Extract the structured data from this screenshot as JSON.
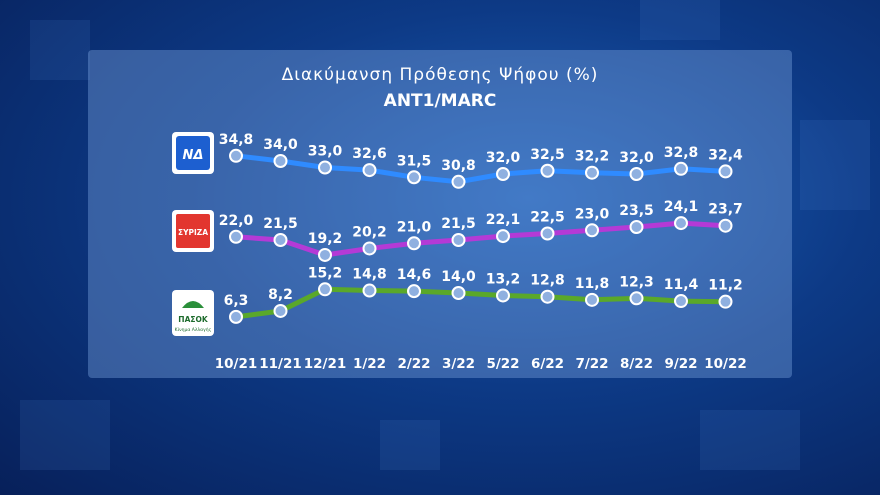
{
  "chart_data": {
    "type": "line",
    "title": "Διακύμανση Πρόθεσης Ψήφου (%)",
    "subtitle": "ANT1/MARC",
    "categories": [
      "10/21",
      "11/21",
      "12/21",
      "1/22",
      "2/22",
      "3/22",
      "5/22",
      "6/22",
      "7/22",
      "8/22",
      "9/22",
      "10/22"
    ],
    "series": [
      {
        "name": "",
        "logo": "ND",
        "color": "#2f8bff",
        "values": [
          34.8,
          34.0,
          33.0,
          32.6,
          31.5,
          30.8,
          32.0,
          32.5,
          32.2,
          32.0,
          32.8,
          32.4
        ],
        "labels": [
          "34,8",
          "34,0",
          "33,0",
          "32,6",
          "31,5",
          "30,8",
          "32,0",
          "32,5",
          "32,2",
          "32,0",
          "32,8",
          "32,4"
        ]
      },
      {
        "name": "",
        "logo": "ΣΥΡΙΖΑ",
        "color": "#b43ad6",
        "values": [
          22.0,
          21.5,
          19.2,
          20.2,
          21.0,
          21.5,
          22.1,
          22.5,
          23.0,
          23.5,
          24.1,
          23.7
        ],
        "labels": [
          "22,0",
          "21,5",
          "19,2",
          "20,2",
          "21,0",
          "21,5",
          "22,1",
          "22,5",
          "23,0",
          "23,5",
          "24,1",
          "23,7"
        ]
      },
      {
        "name": "",
        "logo": "ΠΑΣΟΚ",
        "logo_sub": "Κίνημα Αλλαγής",
        "color": "#5aa82a",
        "values": [
          6.3,
          8.2,
          15.2,
          14.8,
          14.6,
          14.0,
          13.2,
          12.8,
          11.8,
          12.3,
          11.4,
          11.2
        ],
        "labels": [
          "6,3",
          "8,2",
          "15,2",
          "14,8",
          "14,6",
          "14,0",
          "13,2",
          "12,8",
          "11,8",
          "12,3",
          "11,4",
          "11,2"
        ]
      }
    ],
    "grid": false,
    "legend": "none"
  }
}
